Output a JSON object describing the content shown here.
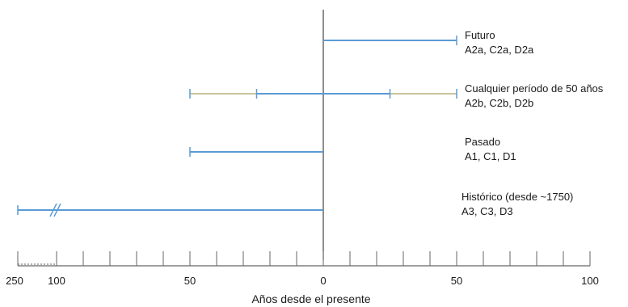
{
  "colors": {
    "bar": "#5b9bd5",
    "bar_light": "#c9c49a",
    "axis": "#666666",
    "zero_line": "#444444"
  },
  "axis": {
    "title": "Años desde el presente",
    "ticks": [
      {
        "label": "250",
        "value": -250
      },
      {
        "label": "100",
        "value": -100
      },
      {
        "label": "50",
        "value": -50
      },
      {
        "label": "0",
        "value": 0
      },
      {
        "label": "50",
        "value": 50
      },
      {
        "label": "100",
        "value": 100
      }
    ]
  },
  "categories": [
    {
      "name": "Futuro",
      "codes": "A2a, C2a, D2a"
    },
    {
      "name": "Cualquier período de 50 años",
      "codes": "A2b, C2b, D2b"
    },
    {
      "name": "Pasado",
      "codes": "A1, C1, D1"
    },
    {
      "name": "Histórico (desde ~1750)",
      "codes": "A3, C3, D3"
    }
  ],
  "chart_data": {
    "type": "bar",
    "xlabel": "Años desde el presente",
    "xticks": [
      "250",
      "100",
      "50",
      "0",
      "50",
      "100"
    ],
    "axis_break": "between 250 and 100 years before present",
    "series": [
      {
        "category": "Futuro",
        "codes": "A2a, C2a, D2a",
        "from": 0,
        "to": 50
      },
      {
        "category": "Cualquier período de 50 años",
        "codes": "A2b, C2b, D2b",
        "from": -50,
        "to": 50,
        "core_from": -25,
        "core_to": 25
      },
      {
        "category": "Pasado",
        "codes": "A1, C1, D1",
        "from": -50,
        "to": 0
      },
      {
        "category": "Histórico (desde ~1750)",
        "codes": "A3, C3, D3",
        "from": -250,
        "to": 0
      }
    ]
  }
}
